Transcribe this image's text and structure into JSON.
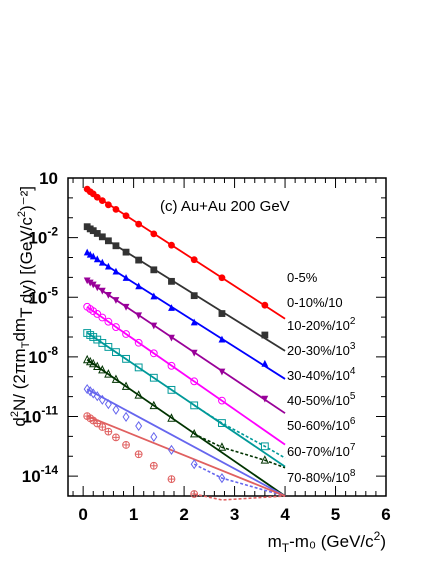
{
  "chart_data": {
    "type": "scatter",
    "title": "(c) Au+Au 200 GeV",
    "xlabel": "m_T-m_0 (GeV/c^2)",
    "ylabel": "d^2N/(2πm_T dm_T dy) [(GeV/c^2)^-2]",
    "xlim": [
      -0.3,
      6
    ],
    "ylim_log10": [
      -15,
      1
    ],
    "yscale": "log",
    "x_ticks": [
      "0",
      "1",
      "2",
      "3",
      "4",
      "5",
      "6"
    ],
    "y_ticks": [
      {
        "text": "10",
        "exp": "",
        "log": 1
      },
      {
        "text": "10",
        "exp": "-2",
        "log": -2
      },
      {
        "text": "10",
        "exp": "-5",
        "log": -5
      },
      {
        "text": "10",
        "exp": "-8",
        "log": -8
      },
      {
        "text": "10",
        "exp": "-11",
        "log": -11
      },
      {
        "text": "10",
        "exp": "-14",
        "log": -14
      }
    ],
    "grid": false,
    "series": [
      {
        "name": "0-5%",
        "label_main": "0-5%",
        "label_exp": "",
        "color": "#ff0000",
        "marker": "circle-filled",
        "x": [
          0.08,
          0.14,
          0.2,
          0.28,
          0.38,
          0.5,
          0.65,
          0.85,
          1.1,
          1.4,
          1.75,
          2.2,
          2.75,
          3.6
        ],
        "log10y": [
          0.44,
          0.31,
          0.2,
          0.03,
          -0.14,
          -0.35,
          -0.58,
          -0.9,
          -1.32,
          -1.81,
          -2.38,
          -3.11,
          -4.02,
          -5.4
        ],
        "fit_end": 4.0,
        "extrap_end": 4.0
      },
      {
        "name": "0-10%/10",
        "label_main": "0-10%/10",
        "label_exp": "",
        "color": "#333333",
        "marker": "square-filled",
        "x": [
          0.08,
          0.14,
          0.2,
          0.28,
          0.38,
          0.5,
          0.65,
          0.85,
          1.1,
          1.4,
          1.75,
          2.2,
          2.75,
          3.6
        ],
        "log10y": [
          -1.45,
          -1.56,
          -1.65,
          -1.79,
          -1.96,
          -2.16,
          -2.41,
          -2.73,
          -3.13,
          -3.62,
          -4.2,
          -4.92,
          -5.82,
          -6.9
        ],
        "fit_end": 4.0,
        "extrap_end": 4.0
      },
      {
        "name": "10-20%/10^2",
        "label_main": "10-20%/10",
        "label_exp": "2",
        "color": "#0000ff",
        "marker": "triangle-up-filled",
        "x": [
          0.08,
          0.14,
          0.2,
          0.28,
          0.38,
          0.5,
          0.65,
          0.85,
          1.1,
          1.4,
          1.75,
          2.2,
          2.75,
          3.6
        ],
        "log10y": [
          -2.75,
          -2.86,
          -2.95,
          -3.09,
          -3.26,
          -3.46,
          -3.71,
          -4.03,
          -4.45,
          -4.96,
          -5.54,
          -6.27,
          -7.13,
          -8.35
        ],
        "fit_end": 4.0,
        "extrap_end": 4.0
      },
      {
        "name": "20-30%/10^3",
        "label_main": "20-30%/10",
        "label_exp": "3",
        "color": "#990099",
        "marker": "triangle-down-filled",
        "x": [
          0.08,
          0.14,
          0.2,
          0.28,
          0.38,
          0.5,
          0.65,
          0.85,
          1.1,
          1.4,
          1.75,
          2.2,
          2.75,
          3.6
        ],
        "log10y": [
          -4.15,
          -4.26,
          -4.36,
          -4.5,
          -4.67,
          -4.88,
          -5.14,
          -5.48,
          -5.91,
          -6.42,
          -7.03,
          -7.79,
          -8.74,
          -10.1
        ],
        "fit_end": 4.0,
        "extrap_end": 4.0
      },
      {
        "name": "30-40%/10^4",
        "label_main": "30-40%/10",
        "label_exp": "4",
        "color": "#ff00ff",
        "marker": "circle-open",
        "x": [
          0.08,
          0.14,
          0.2,
          0.28,
          0.38,
          0.5,
          0.65,
          0.85,
          1.1,
          1.4,
          1.75,
          2.2,
          2.75
        ],
        "log10y": [
          -5.48,
          -5.59,
          -5.7,
          -5.84,
          -6.02,
          -6.23,
          -6.5,
          -6.85,
          -7.29,
          -7.82,
          -8.45,
          -9.23,
          -10.2
        ],
        "fit_end": 4.0,
        "extrap_end": 4.0
      },
      {
        "name": "40-50%/10^5",
        "label_main": "40-50%/10",
        "label_exp": "5",
        "color": "#009999",
        "marker": "square-open",
        "x": [
          0.08,
          0.14,
          0.2,
          0.28,
          0.38,
          0.5,
          0.65,
          0.85,
          1.1,
          1.4,
          1.75,
          2.2,
          2.75,
          3.6
        ],
        "log10y": [
          -6.8,
          -6.9,
          -7.0,
          -7.13,
          -7.3,
          -7.5,
          -7.76,
          -8.1,
          -8.53,
          -9.05,
          -9.66,
          -10.44,
          -11.33,
          -12.5
        ],
        "fit_end": 2.5,
        "extrap_end": 4.0
      },
      {
        "name": "50-60%/10^6",
        "label_main": "50-60%/10",
        "label_exp": "6",
        "color": "#003300",
        "marker": "triangle-up-open",
        "x": [
          0.08,
          0.14,
          0.2,
          0.28,
          0.38,
          0.5,
          0.65,
          0.85,
          1.1,
          1.4,
          1.75,
          2.2,
          2.75,
          3.6
        ],
        "log10y": [
          -8.15,
          -8.25,
          -8.35,
          -8.49,
          -8.66,
          -8.87,
          -9.14,
          -9.49,
          -9.93,
          -10.46,
          -11.09,
          -11.88,
          -12.55,
          -13.2
        ],
        "fit_end": 2.5,
        "extrap_end": 4.0
      },
      {
        "name": "60-70%/10^7",
        "label_main": "60-70%/10",
        "label_exp": "7",
        "color": "#6666ee",
        "marker": "diamond-open",
        "x": [
          0.08,
          0.14,
          0.2,
          0.28,
          0.38,
          0.5,
          0.65,
          0.85,
          1.1,
          1.4,
          1.75,
          2.2,
          2.75
        ],
        "log10y": [
          -9.62,
          -9.73,
          -9.84,
          -9.98,
          -10.16,
          -10.38,
          -10.66,
          -11.02,
          -11.48,
          -12.03,
          -12.68,
          -13.4,
          -14.1
        ],
        "fit_end": 2.5,
        "extrap_end": 4.0
      },
      {
        "name": "70-80%/10^8",
        "label_main": "70-80%/10",
        "label_exp": "8",
        "color": "#e06060",
        "marker": "cross-circle-open",
        "x": [
          0.08,
          0.14,
          0.2,
          0.28,
          0.38,
          0.5,
          0.65,
          0.85,
          1.1,
          1.4,
          1.75,
          2.2,
          2.75
        ],
        "log10y": [
          -10.98,
          -11.09,
          -11.2,
          -11.35,
          -11.53,
          -11.76,
          -12.05,
          -12.43,
          -12.9,
          -13.48,
          -14.15,
          -14.9,
          -15.2
        ],
        "fit_end": 2.5,
        "extrap_end": 4.0
      }
    ]
  }
}
